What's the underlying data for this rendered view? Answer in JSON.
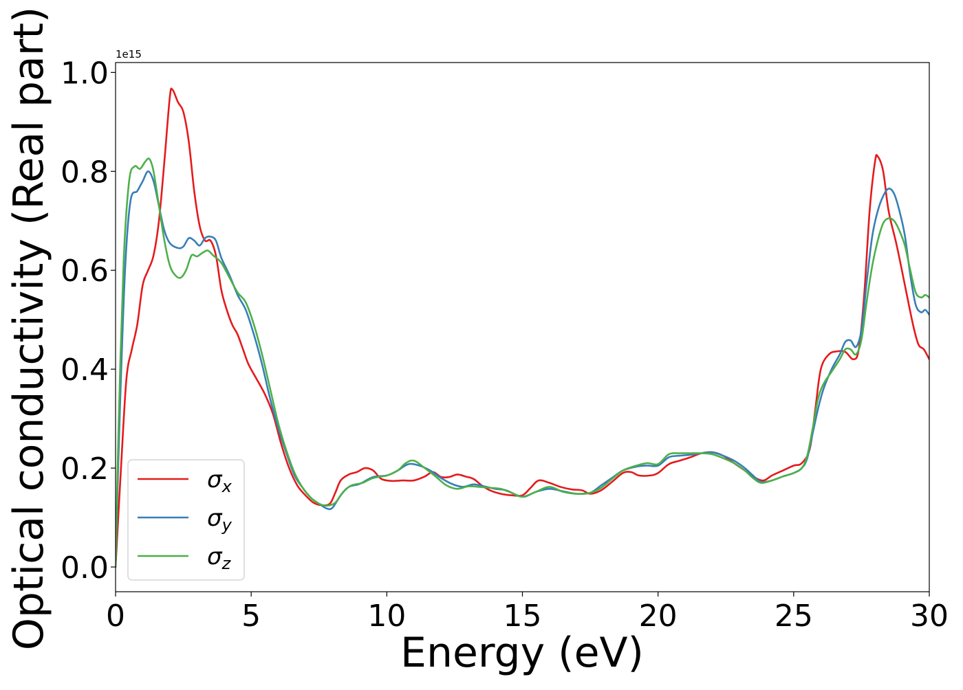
{
  "chart_data": {
    "type": "line",
    "xlabel": "Energy (eV)",
    "ylabel": "Optical conductivity (Real part)",
    "y_offset_label": "1e15",
    "xlim": [
      0,
      30
    ],
    "ylim": [
      -0.05,
      1.02
    ],
    "y_scale": 1000000000000000.0,
    "x_ticks": [
      0,
      5,
      10,
      15,
      20,
      25,
      30
    ],
    "x_tick_labels": [
      "0",
      "5",
      "10",
      "15",
      "20",
      "25",
      "30"
    ],
    "y_ticks": [
      0.0,
      0.2,
      0.4,
      0.6,
      0.8,
      1.0
    ],
    "y_tick_labels": [
      "0.0",
      "0.2",
      "0.4",
      "0.6",
      "0.8",
      "1.0"
    ],
    "grid": false,
    "legend_position": "lower-left",
    "series": [
      {
        "name": "σx",
        "symbol": "σ",
        "subscript": "x",
        "color": "#e41a1c",
        "points": [
          [
            0,
            0.0
          ],
          [
            0.2,
            0.2
          ],
          [
            0.4,
            0.38
          ],
          [
            0.6,
            0.44
          ],
          [
            0.8,
            0.49
          ],
          [
            1.0,
            0.57
          ],
          [
            1.2,
            0.6
          ],
          [
            1.4,
            0.63
          ],
          [
            1.6,
            0.7
          ],
          [
            1.8,
            0.82
          ],
          [
            2.0,
            0.95
          ],
          [
            2.1,
            0.965
          ],
          [
            2.3,
            0.94
          ],
          [
            2.5,
            0.92
          ],
          [
            2.7,
            0.86
          ],
          [
            2.9,
            0.76
          ],
          [
            3.1,
            0.69
          ],
          [
            3.3,
            0.66
          ],
          [
            3.5,
            0.66
          ],
          [
            3.7,
            0.63
          ],
          [
            3.9,
            0.56
          ],
          [
            4.1,
            0.52
          ],
          [
            4.3,
            0.49
          ],
          [
            4.5,
            0.47
          ],
          [
            4.7,
            0.44
          ],
          [
            4.9,
            0.41
          ],
          [
            5.2,
            0.38
          ],
          [
            5.5,
            0.35
          ],
          [
            5.8,
            0.31
          ],
          [
            6.1,
            0.25
          ],
          [
            6.4,
            0.2
          ],
          [
            6.7,
            0.165
          ],
          [
            7.0,
            0.145
          ],
          [
            7.3,
            0.13
          ],
          [
            7.6,
            0.125
          ],
          [
            7.9,
            0.128
          ],
          [
            8.1,
            0.15
          ],
          [
            8.3,
            0.175
          ],
          [
            8.6,
            0.187
          ],
          [
            8.9,
            0.192
          ],
          [
            9.2,
            0.2
          ],
          [
            9.5,
            0.195
          ],
          [
            9.8,
            0.178
          ],
          [
            10.2,
            0.174
          ],
          [
            10.6,
            0.175
          ],
          [
            11.0,
            0.175
          ],
          [
            11.4,
            0.183
          ],
          [
            11.7,
            0.192
          ],
          [
            12.0,
            0.182
          ],
          [
            12.3,
            0.182
          ],
          [
            12.6,
            0.187
          ],
          [
            12.9,
            0.183
          ],
          [
            13.2,
            0.178
          ],
          [
            13.5,
            0.165
          ],
          [
            13.8,
            0.155
          ],
          [
            14.2,
            0.148
          ],
          [
            14.6,
            0.145
          ],
          [
            15.0,
            0.145
          ],
          [
            15.3,
            0.16
          ],
          [
            15.6,
            0.175
          ],
          [
            16.0,
            0.17
          ],
          [
            16.4,
            0.162
          ],
          [
            16.8,
            0.157
          ],
          [
            17.2,
            0.155
          ],
          [
            17.5,
            0.148
          ],
          [
            17.9,
            0.155
          ],
          [
            18.3,
            0.172
          ],
          [
            18.7,
            0.19
          ],
          [
            19.0,
            0.192
          ],
          [
            19.3,
            0.185
          ],
          [
            19.7,
            0.185
          ],
          [
            20.0,
            0.19
          ],
          [
            20.4,
            0.208
          ],
          [
            20.8,
            0.215
          ],
          [
            21.2,
            0.222
          ],
          [
            21.6,
            0.23
          ],
          [
            22.0,
            0.232
          ],
          [
            22.4,
            0.225
          ],
          [
            22.8,
            0.21
          ],
          [
            23.2,
            0.195
          ],
          [
            23.6,
            0.18
          ],
          [
            23.9,
            0.175
          ],
          [
            24.2,
            0.185
          ],
          [
            24.6,
            0.195
          ],
          [
            25.0,
            0.205
          ],
          [
            25.3,
            0.21
          ],
          [
            25.6,
            0.24
          ],
          [
            25.8,
            0.32
          ],
          [
            26.0,
            0.4
          ],
          [
            26.3,
            0.43
          ],
          [
            26.6,
            0.436
          ],
          [
            26.9,
            0.435
          ],
          [
            27.2,
            0.42
          ],
          [
            27.4,
            0.44
          ],
          [
            27.6,
            0.55
          ],
          [
            27.8,
            0.72
          ],
          [
            28.0,
            0.82
          ],
          [
            28.1,
            0.83
          ],
          [
            28.3,
            0.8
          ],
          [
            28.5,
            0.72
          ],
          [
            28.8,
            0.65
          ],
          [
            29.1,
            0.57
          ],
          [
            29.4,
            0.49
          ],
          [
            29.6,
            0.45
          ],
          [
            29.8,
            0.44
          ],
          [
            30.0,
            0.42
          ]
        ]
      },
      {
        "name": "σy",
        "symbol": "σ",
        "subscript": "y",
        "color": "#377eb8",
        "points": [
          [
            0,
            0.0
          ],
          [
            0.15,
            0.3
          ],
          [
            0.35,
            0.6
          ],
          [
            0.55,
            0.74
          ],
          [
            0.8,
            0.76
          ],
          [
            1.0,
            0.78
          ],
          [
            1.2,
            0.8
          ],
          [
            1.4,
            0.78
          ],
          [
            1.6,
            0.73
          ],
          [
            1.8,
            0.68
          ],
          [
            2.0,
            0.655
          ],
          [
            2.3,
            0.645
          ],
          [
            2.5,
            0.648
          ],
          [
            2.7,
            0.665
          ],
          [
            2.9,
            0.66
          ],
          [
            3.1,
            0.65
          ],
          [
            3.3,
            0.665
          ],
          [
            3.5,
            0.668
          ],
          [
            3.7,
            0.66
          ],
          [
            3.9,
            0.625
          ],
          [
            4.2,
            0.59
          ],
          [
            4.5,
            0.55
          ],
          [
            4.8,
            0.52
          ],
          [
            5.1,
            0.47
          ],
          [
            5.4,
            0.41
          ],
          [
            5.7,
            0.34
          ],
          [
            6.0,
            0.28
          ],
          [
            6.3,
            0.23
          ],
          [
            6.6,
            0.185
          ],
          [
            6.9,
            0.16
          ],
          [
            7.2,
            0.14
          ],
          [
            7.5,
            0.128
          ],
          [
            7.8,
            0.118
          ],
          [
            8.0,
            0.12
          ],
          [
            8.3,
            0.145
          ],
          [
            8.6,
            0.162
          ],
          [
            9.0,
            0.168
          ],
          [
            9.5,
            0.182
          ],
          [
            10.0,
            0.185
          ],
          [
            10.4,
            0.195
          ],
          [
            10.8,
            0.208
          ],
          [
            11.2,
            0.205
          ],
          [
            11.6,
            0.195
          ],
          [
            12.0,
            0.18
          ],
          [
            12.4,
            0.168
          ],
          [
            12.8,
            0.162
          ],
          [
            13.2,
            0.167
          ],
          [
            13.6,
            0.163
          ],
          [
            14.0,
            0.158
          ],
          [
            14.4,
            0.155
          ],
          [
            15.0,
            0.142
          ],
          [
            15.5,
            0.152
          ],
          [
            16.0,
            0.158
          ],
          [
            16.5,
            0.153
          ],
          [
            17.0,
            0.148
          ],
          [
            17.5,
            0.15
          ],
          [
            17.9,
            0.165
          ],
          [
            18.3,
            0.18
          ],
          [
            18.7,
            0.195
          ],
          [
            19.2,
            0.203
          ],
          [
            19.6,
            0.205
          ],
          [
            20.0,
            0.205
          ],
          [
            20.4,
            0.222
          ],
          [
            20.8,
            0.225
          ],
          [
            21.2,
            0.227
          ],
          [
            21.6,
            0.23
          ],
          [
            22.0,
            0.232
          ],
          [
            22.4,
            0.225
          ],
          [
            22.8,
            0.215
          ],
          [
            23.2,
            0.2
          ],
          [
            23.5,
            0.185
          ],
          [
            23.8,
            0.172
          ],
          [
            24.2,
            0.175
          ],
          [
            24.6,
            0.183
          ],
          [
            25.0,
            0.19
          ],
          [
            25.3,
            0.2
          ],
          [
            25.5,
            0.22
          ],
          [
            25.7,
            0.27
          ],
          [
            25.9,
            0.32
          ],
          [
            26.1,
            0.36
          ],
          [
            26.4,
            0.4
          ],
          [
            26.7,
            0.43
          ],
          [
            26.9,
            0.455
          ],
          [
            27.1,
            0.458
          ],
          [
            27.3,
            0.445
          ],
          [
            27.5,
            0.48
          ],
          [
            27.7,
            0.58
          ],
          [
            27.9,
            0.67
          ],
          [
            28.1,
            0.72
          ],
          [
            28.3,
            0.75
          ],
          [
            28.5,
            0.765
          ],
          [
            28.7,
            0.755
          ],
          [
            28.9,
            0.72
          ],
          [
            29.1,
            0.67
          ],
          [
            29.3,
            0.59
          ],
          [
            29.5,
            0.53
          ],
          [
            29.7,
            0.515
          ],
          [
            29.85,
            0.52
          ],
          [
            30.0,
            0.51
          ]
        ]
      },
      {
        "name": "σz",
        "symbol": "σ",
        "subscript": "z",
        "color": "#4daf4a",
        "points": [
          [
            0,
            0.0
          ],
          [
            0.12,
            0.3
          ],
          [
            0.3,
            0.62
          ],
          [
            0.5,
            0.78
          ],
          [
            0.7,
            0.81
          ],
          [
            0.9,
            0.805
          ],
          [
            1.1,
            0.82
          ],
          [
            1.25,
            0.825
          ],
          [
            1.4,
            0.8
          ],
          [
            1.6,
            0.73
          ],
          [
            1.8,
            0.66
          ],
          [
            2.0,
            0.61
          ],
          [
            2.2,
            0.59
          ],
          [
            2.4,
            0.585
          ],
          [
            2.6,
            0.6
          ],
          [
            2.8,
            0.63
          ],
          [
            3.0,
            0.628
          ],
          [
            3.2,
            0.635
          ],
          [
            3.4,
            0.64
          ],
          [
            3.6,
            0.63
          ],
          [
            3.9,
            0.615
          ],
          [
            4.2,
            0.585
          ],
          [
            4.5,
            0.555
          ],
          [
            4.8,
            0.535
          ],
          [
            5.1,
            0.49
          ],
          [
            5.4,
            0.43
          ],
          [
            5.7,
            0.36
          ],
          [
            6.0,
            0.29
          ],
          [
            6.3,
            0.235
          ],
          [
            6.6,
            0.19
          ],
          [
            6.9,
            0.16
          ],
          [
            7.2,
            0.14
          ],
          [
            7.5,
            0.128
          ],
          [
            7.8,
            0.124
          ],
          [
            8.1,
            0.13
          ],
          [
            8.4,
            0.152
          ],
          [
            8.7,
            0.165
          ],
          [
            9.1,
            0.17
          ],
          [
            9.5,
            0.18
          ],
          [
            10.0,
            0.185
          ],
          [
            10.4,
            0.195
          ],
          [
            10.7,
            0.21
          ],
          [
            11.0,
            0.215
          ],
          [
            11.4,
            0.2
          ],
          [
            11.8,
            0.183
          ],
          [
            12.2,
            0.165
          ],
          [
            12.6,
            0.158
          ],
          [
            13.0,
            0.163
          ],
          [
            13.4,
            0.162
          ],
          [
            13.8,
            0.16
          ],
          [
            14.2,
            0.158
          ],
          [
            14.6,
            0.15
          ],
          [
            15.0,
            0.142
          ],
          [
            15.5,
            0.152
          ],
          [
            16.0,
            0.162
          ],
          [
            16.5,
            0.152
          ],
          [
            17.0,
            0.148
          ],
          [
            17.5,
            0.15
          ],
          [
            17.9,
            0.16
          ],
          [
            18.3,
            0.178
          ],
          [
            18.7,
            0.195
          ],
          [
            19.2,
            0.205
          ],
          [
            19.6,
            0.21
          ],
          [
            20.0,
            0.208
          ],
          [
            20.4,
            0.228
          ],
          [
            20.8,
            0.23
          ],
          [
            21.2,
            0.23
          ],
          [
            21.6,
            0.23
          ],
          [
            22.0,
            0.228
          ],
          [
            22.4,
            0.22
          ],
          [
            22.8,
            0.21
          ],
          [
            23.2,
            0.195
          ],
          [
            23.5,
            0.18
          ],
          [
            23.8,
            0.17
          ],
          [
            24.2,
            0.175
          ],
          [
            24.6,
            0.183
          ],
          [
            25.0,
            0.19
          ],
          [
            25.3,
            0.2
          ],
          [
            25.5,
            0.225
          ],
          [
            25.7,
            0.28
          ],
          [
            25.9,
            0.34
          ],
          [
            26.1,
            0.37
          ],
          [
            26.4,
            0.395
          ],
          [
            26.7,
            0.42
          ],
          [
            26.9,
            0.44
          ],
          [
            27.1,
            0.44
          ],
          [
            27.3,
            0.43
          ],
          [
            27.5,
            0.46
          ],
          [
            27.7,
            0.54
          ],
          [
            27.9,
            0.61
          ],
          [
            28.1,
            0.66
          ],
          [
            28.3,
            0.695
          ],
          [
            28.5,
            0.705
          ],
          [
            28.7,
            0.7
          ],
          [
            28.9,
            0.68
          ],
          [
            29.1,
            0.65
          ],
          [
            29.3,
            0.6
          ],
          [
            29.5,
            0.555
          ],
          [
            29.7,
            0.545
          ],
          [
            29.85,
            0.55
          ],
          [
            30.0,
            0.545
          ]
        ]
      }
    ]
  }
}
